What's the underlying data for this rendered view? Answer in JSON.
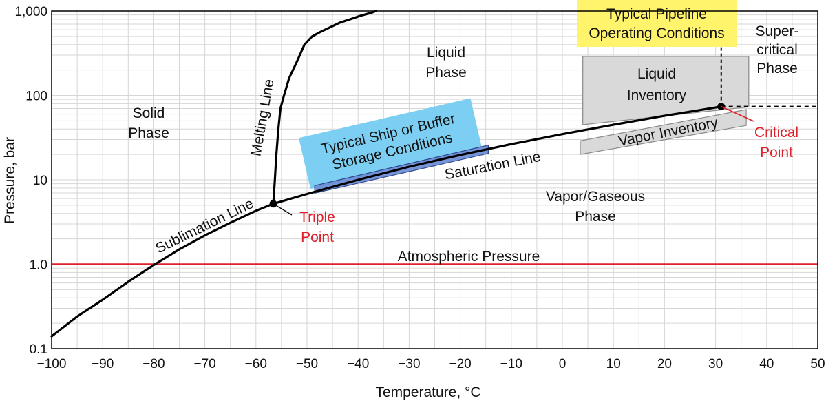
{
  "chart_data": {
    "type": "line",
    "title": "",
    "xlabel": "Temperature, °C",
    "ylabel": "Pressure, bar",
    "xlim": [
      -100,
      50
    ],
    "ylim": [
      0.1,
      1000
    ],
    "yscale": "log",
    "grid": true,
    "x_ticks": [
      "−100",
      "−90",
      "−80",
      "−70",
      "−60",
      "−50",
      "−40",
      "−30",
      "−20",
      "−10",
      "0",
      "10",
      "20",
      "30",
      "40",
      "50"
    ],
    "y_ticks": [
      "0.1",
      "1.0",
      "10",
      "100",
      "1,000"
    ],
    "series": [
      {
        "name": "Sublimation Line",
        "x": [
          -100,
          -95,
          -90,
          -85,
          -80,
          -75,
          -70,
          -65,
          -60,
          -56.6
        ],
        "y": [
          0.14,
          0.24,
          0.38,
          0.62,
          0.98,
          1.5,
          2.2,
          3.1,
          4.3,
          5.2
        ]
      },
      {
        "name": "Melting Line",
        "x": [
          -56.6,
          -56.3,
          -56.0,
          -55.6,
          -55.2,
          -54.5,
          -53.5,
          -52.0,
          -50.5,
          -49.0,
          -47.5,
          -45.5,
          -43.5,
          -41.5,
          -39.5,
          -37.5,
          -36.5
        ],
        "y": [
          5.2,
          10,
          20,
          40,
          70,
          100,
          160,
          250,
          400,
          500,
          560,
          640,
          730,
          800,
          880,
          950,
          1000
        ]
      },
      {
        "name": "Saturation Line",
        "x": [
          -56.6,
          -50,
          -40,
          -30,
          -20,
          -10,
          0,
          10,
          20,
          31.1
        ],
        "y": [
          5.2,
          6.8,
          10,
          14.3,
          19.7,
          26.5,
          34.8,
          45,
          57.3,
          73.8
        ]
      }
    ],
    "reference_lines": [
      {
        "name": "Atmospheric Pressure",
        "y": 1.0,
        "color": "#e0202a"
      }
    ],
    "points": [
      {
        "name": "Triple Point",
        "x": -56.6,
        "y": 5.2,
        "color": "#e0202a"
      },
      {
        "name": "Critical Point",
        "x": 31.1,
        "y": 73.8,
        "color": "#e0202a"
      }
    ],
    "region_labels": {
      "solid": [
        "Solid",
        "Phase"
      ],
      "liquid": [
        "Liquid",
        "Phase"
      ],
      "vapor": [
        "Vapor/Gaseous",
        "Phase"
      ],
      "supercritical": [
        "Super-",
        "critical",
        "Phase"
      ]
    },
    "zones": {
      "liquid_inventory": {
        "label": [
          "Liquid",
          "Inventory"
        ],
        "x": [
          4,
          36.5
        ],
        "y_bottom": [
          45,
          73
        ],
        "y_top": [
          290,
          290
        ],
        "color": "#d9d9d9"
      },
      "vapor_inventory": {
        "label": "Vapor Inventory",
        "x": [
          3.5,
          36
        ],
        "y_bottom": [
          20,
          44
        ],
        "y_top": [
          29,
          68
        ],
        "color": "#d9d9d9"
      },
      "ship_storage": {
        "label": [
          "Typical Ship or Buffer",
          "Storage Conditions"
        ],
        "x": [
          -48.5,
          -14.5
        ],
        "y": [
          7.5,
          23
        ],
        "color": "#6f8fd6"
      },
      "pipeline": {
        "label": [
          "Typical Pipeline",
          "Operating Conditions"
        ],
        "color": "#fff46b"
      }
    },
    "annotations": {
      "melting_line": "Melting Line",
      "saturation_line": "Saturation Line",
      "sublimation_line": "Sublimation Line",
      "atmospheric": "Atmospheric Pressure",
      "triple_point": [
        "Triple",
        "Point"
      ],
      "critical_point": [
        "Critical",
        "Point"
      ]
    },
    "colors": {
      "curve": "#000000",
      "atmospheric": "#e0202a",
      "red_text": "#e0202a",
      "ship_box": "#7ccff2",
      "ship_band": "#6f8fd6",
      "pipeline_box": "#fff46b",
      "inventory": "#d9d9d9"
    }
  }
}
